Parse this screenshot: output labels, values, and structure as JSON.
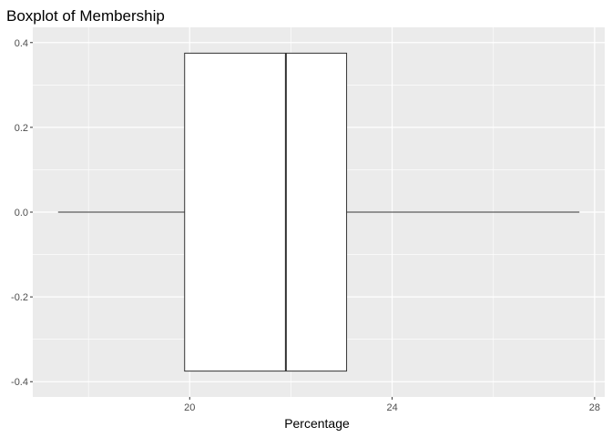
{
  "chart_data": {
    "type": "boxplot",
    "title": "Boxplot of Membership",
    "xlabel": "Percentage",
    "ylabel": "",
    "xlim": [
      16.9,
      28.2
    ],
    "ylim": [
      -0.4,
      0.4
    ],
    "x_ticks": [
      20,
      24,
      28
    ],
    "y_ticks": [
      -0.4,
      -0.2,
      0.0,
      0.2,
      0.4
    ],
    "x_tick_labels": [
      "20",
      "24",
      "28"
    ],
    "y_tick_labels": [
      "-0.4",
      "-0.2",
      "0.0",
      "0.2",
      "0.4"
    ],
    "box": {
      "min": 17.4,
      "q1": 19.9,
      "median": 21.9,
      "q3": 23.1,
      "max": 27.7,
      "y_center": 0.0,
      "half_width": 0.375
    },
    "grid": true,
    "colors": {
      "panel_bg": "#ebebeb",
      "grid_major": "#ffffff",
      "box_fill": "#ffffff",
      "box_stroke": "#333333",
      "tick_text": "#4d4d4d"
    }
  }
}
